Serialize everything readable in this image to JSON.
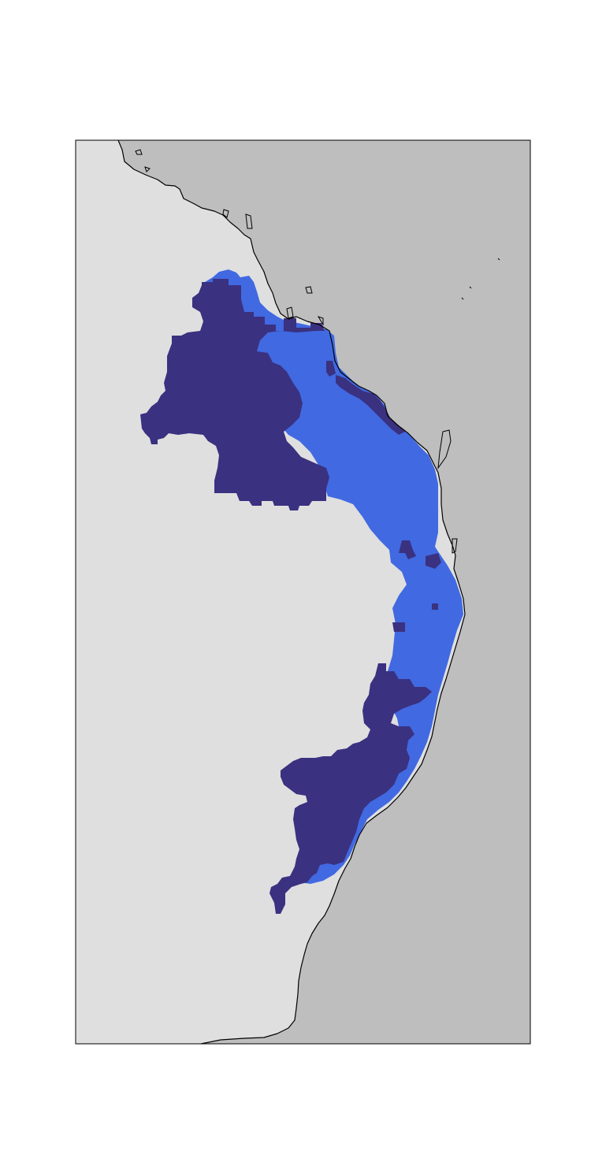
{
  "map": {
    "colors": {
      "land": "#dfdfdf",
      "ocean": "#bebebe",
      "coastline": "#000000",
      "range_primary": "#4169e1",
      "range_secondary": "#3a3180",
      "frame": "#000000"
    },
    "layers": [
      {
        "id": "ocean",
        "kind": "background"
      },
      {
        "id": "land",
        "kind": "landmass"
      },
      {
        "id": "range-light",
        "kind": "gridded-distribution"
      },
      {
        "id": "range-dark",
        "kind": "gridded-distribution"
      },
      {
        "id": "coastline",
        "kind": "outline"
      }
    ]
  }
}
